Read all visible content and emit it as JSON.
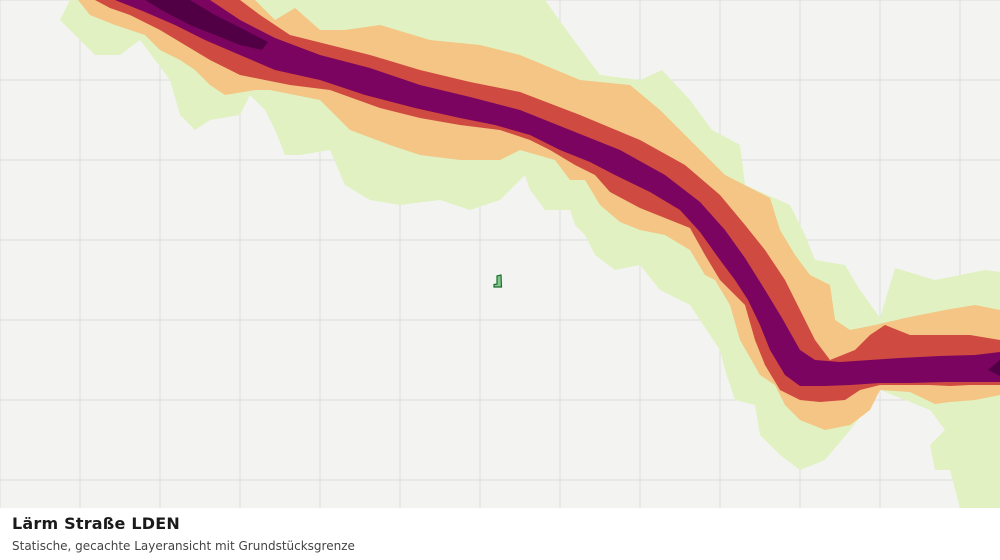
{
  "map": {
    "layer_name": "Lärm Straße LDEN",
    "colors": {
      "background": "#f3f4f2",
      "grid": "#dcdedb",
      "noise_band_1": "#e1f1c1",
      "noise_band_2": "#f4c584",
      "noise_band_3": "#cf4a40",
      "noise_band_4": "#7b0460",
      "noise_band_5": "#520045",
      "parcel_outline": "#1f6b2f",
      "parcel_fill": "#7fc98b"
    },
    "icons": [
      "parcel-boundary-marker"
    ]
  },
  "caption": {
    "title": "Lärm Straße LDEN",
    "subtitle": "Statische, gecachte Layeransicht mit Grundstücksgrenze"
  }
}
